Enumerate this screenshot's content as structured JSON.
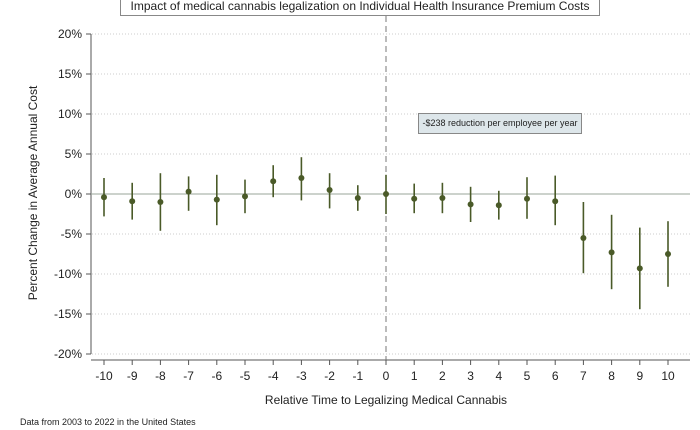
{
  "chart_data": {
    "type": "scatter",
    "title": "Impact of medical cannabis legalization on Individual Health Insurance Premium Costs",
    "xlabel": "Relative Time to Legalizing Medical Cannabis",
    "ylabel": "Percent Change in Average Annual Cost",
    "annotation": "-$238 reduction per employee per year",
    "note": "Data from 2003 to 2022 in the United States",
    "xlim": [
      -10,
      10
    ],
    "ylim": [
      -20,
      20
    ],
    "x_ticks": [
      "-10",
      "-9",
      "-8",
      "-7",
      "-6",
      "-5",
      "-4",
      "-3",
      "-2",
      "-1",
      "0",
      "1",
      "2",
      "3",
      "4",
      "5",
      "6",
      "7",
      "8",
      "9",
      "10"
    ],
    "y_ticks": [
      {
        "value": 20,
        "label": "20%"
      },
      {
        "value": 15,
        "label": "15%"
      },
      {
        "value": 10,
        "label": "10%"
      },
      {
        "value": 5,
        "label": "5%"
      },
      {
        "value": 0,
        "label": "0%"
      },
      {
        "value": -5,
        "label": "-5%"
      },
      {
        "value": -10,
        "label": "-10%"
      },
      {
        "value": -15,
        "label": "-15%"
      },
      {
        "value": -20,
        "label": "-20%"
      }
    ],
    "grid": true,
    "reference_line_x": 0,
    "reference_line_y": 0,
    "colors": {
      "point": "#4a5a28",
      "ci": "#4a5a28",
      "grid": "#cccccc",
      "annotation_fill": "#dde6ea"
    },
    "points": [
      {
        "x": -10,
        "y": -0.4,
        "lo": -2.8,
        "hi": 2.0
      },
      {
        "x": -9,
        "y": -0.9,
        "lo": -3.2,
        "hi": 1.4
      },
      {
        "x": -8,
        "y": -1.0,
        "lo": -4.6,
        "hi": 2.6
      },
      {
        "x": -7,
        "y": 0.3,
        "lo": -2.1,
        "hi": 2.2
      },
      {
        "x": -6,
        "y": -0.7,
        "lo": -3.9,
        "hi": 2.4
      },
      {
        "x": -5,
        "y": -0.3,
        "lo": -2.4,
        "hi": 1.8
      },
      {
        "x": -4,
        "y": 1.6,
        "lo": -0.4,
        "hi": 3.6
      },
      {
        "x": -3,
        "y": 2.0,
        "lo": -0.8,
        "hi": 4.6
      },
      {
        "x": -2,
        "y": 0.5,
        "lo": -1.8,
        "hi": 2.6
      },
      {
        "x": -1,
        "y": -0.5,
        "lo": -2.1,
        "hi": 1.1
      },
      {
        "x": 0,
        "y": 0.0,
        "lo": -2.5,
        "hi": 2.4
      },
      {
        "x": 1,
        "y": -0.6,
        "lo": -2.4,
        "hi": 1.3
      },
      {
        "x": 2,
        "y": -0.5,
        "lo": -2.4,
        "hi": 1.4
      },
      {
        "x": 3,
        "y": -1.3,
        "lo": -3.5,
        "hi": 0.9
      },
      {
        "x": 4,
        "y": -1.4,
        "lo": -3.2,
        "hi": 0.4
      },
      {
        "x": 5,
        "y": -0.6,
        "lo": -3.1,
        "hi": 2.1
      },
      {
        "x": 6,
        "y": -0.9,
        "lo": -3.9,
        "hi": 2.3
      },
      {
        "x": 7,
        "y": -5.5,
        "lo": -9.9,
        "hi": -1.0
      },
      {
        "x": 8,
        "y": -7.3,
        "lo": -11.9,
        "hi": -2.6
      },
      {
        "x": 9,
        "y": -9.3,
        "lo": -14.4,
        "hi": -4.2
      },
      {
        "x": 10,
        "y": -7.5,
        "lo": -11.6,
        "hi": -3.4
      }
    ]
  }
}
